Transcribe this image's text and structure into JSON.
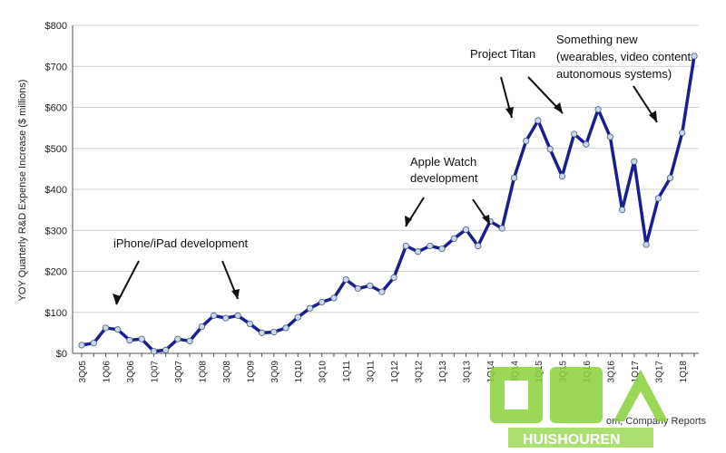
{
  "chart_data": {
    "type": "line",
    "ylabel": "YOY Quarterly R&D Expense Increase ($ millions)",
    "xlabel": "",
    "title": "",
    "ylim": [
      0,
      800
    ],
    "y_ticks": [
      "$0",
      "$100",
      "$200",
      "$300",
      "$400",
      "$500",
      "$600",
      "$700",
      "$800"
    ],
    "x_tick_labels": [
      "3Q05",
      "1Q06",
      "3Q06",
      "1Q07",
      "3Q07",
      "1Q08",
      "3Q08",
      "1Q09",
      "3Q09",
      "1Q10",
      "3Q10",
      "1Q11",
      "3Q11",
      "1Q12",
      "3Q12",
      "1Q13",
      "3Q13",
      "1Q14",
      "3Q14",
      "1Q15",
      "3Q15",
      "1Q16",
      "3Q16",
      "1Q17",
      "3Q17",
      "1Q18"
    ],
    "grid": "horizontal",
    "line_color": "#1a1f8f",
    "marker_color": "#c8d8ec",
    "x": [
      "3Q05",
      "4Q05",
      "1Q06",
      "2Q06",
      "3Q06",
      "4Q06",
      "1Q07",
      "2Q07",
      "3Q07",
      "4Q07",
      "1Q08",
      "2Q08",
      "3Q08",
      "4Q08",
      "1Q09",
      "2Q09",
      "3Q09",
      "4Q09",
      "1Q10",
      "2Q10",
      "3Q10",
      "4Q10",
      "1Q11",
      "2Q11",
      "3Q11",
      "4Q11",
      "1Q12",
      "2Q12",
      "3Q12",
      "4Q12",
      "1Q13",
      "2Q13",
      "3Q13",
      "4Q13",
      "1Q14",
      "2Q14",
      "3Q14",
      "4Q14",
      "1Q15",
      "2Q15",
      "3Q15",
      "4Q15",
      "1Q16",
      "2Q16",
      "3Q16",
      "4Q16",
      "1Q17",
      "2Q17",
      "3Q17",
      "4Q17",
      "1Q18",
      "2Q18"
    ],
    "values": [
      20,
      25,
      62,
      58,
      32,
      35,
      5,
      8,
      35,
      30,
      65,
      92,
      86,
      92,
      72,
      50,
      52,
      62,
      88,
      110,
      125,
      135,
      180,
      158,
      165,
      150,
      185,
      262,
      248,
      262,
      255,
      280,
      302,
      262,
      322,
      305,
      428,
      518,
      568,
      498,
      432,
      535,
      510,
      595,
      528,
      350,
      468,
      265,
      378,
      428,
      538,
      725
    ],
    "annotations": [
      {
        "text": "iPhone/iPad development"
      },
      {
        "text": "Apple Watch"
      },
      {
        "text": "development"
      },
      {
        "text": "Project Titan"
      },
      {
        "text": "Something new"
      },
      {
        "text": "(wearables, video content,"
      },
      {
        "text": "autonomous systems)"
      }
    ],
    "source_text": "om, Company Reports"
  }
}
